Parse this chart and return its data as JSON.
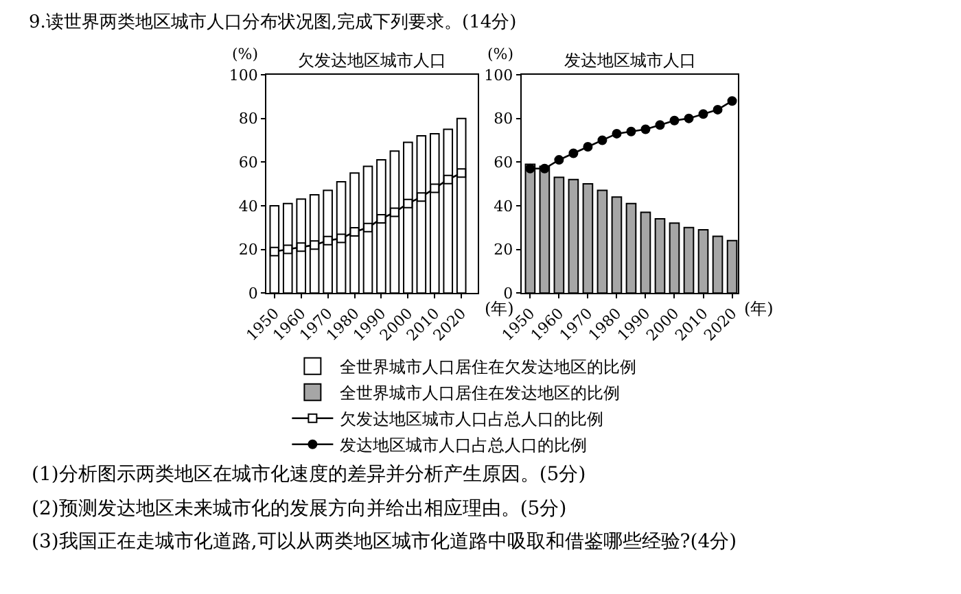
{
  "chart_data": [
    {
      "type": "bar",
      "title": "欠发达地区城市人口",
      "ylabel": "(%)",
      "xlabel": "(年)",
      "annotations": [
        "9.读世界两类地区城市人口分布状况图,完成下列要求。(14分)"
      ],
      "x": [
        1950,
        1955,
        1960,
        1965,
        1970,
        1975,
        1980,
        1985,
        1990,
        1995,
        2000,
        2005,
        2010,
        2015,
        2020
      ],
      "xlim": [
        1947,
        2026
      ],
      "xticks": [
        1950,
        1960,
        1970,
        1980,
        1990,
        2000,
        2010,
        2020
      ],
      "ylim": [
        0,
        100
      ],
      "yticks": [
        0,
        20,
        40,
        60,
        80,
        100
      ],
      "grid": false,
      "legend": "bottom",
      "series": [
        {
          "name": "全世界城市人口居住在欠发达地区的比例",
          "color": "#ffffff",
          "values": [
            40,
            41,
            43,
            45,
            47,
            51,
            55,
            58,
            61,
            65,
            69,
            72,
            73,
            75,
            80
          ]
        },
        {
          "name": "欠发达地区城市人口占总人口的比例",
          "type": "line",
          "color": "#000000",
          "marker": "square",
          "line_style": "solid",
          "values": [
            19,
            20,
            21,
            22,
            24,
            25,
            28,
            30,
            34,
            37,
            41,
            44,
            48,
            52,
            55
          ]
        }
      ]
    },
    {
      "type": "bar",
      "title": "发达地区城市人口",
      "ylabel": "(%)",
      "xlabel": "(年)",
      "annotations": [
        "(1)分析图示两类地区在城市化速度的差异并分析产生原因。(5分)",
        "(2)预测发达地区未来城市化的发展方向并给出相应理由。(5分)",
        "(3)我国正在走城市化道路,可以从两类地区城市化道路中吸取和借鉴哪些经验?(4分)"
      ],
      "x": [
        1950,
        1955,
        1960,
        1965,
        1970,
        1975,
        1980,
        1985,
        1990,
        1995,
        2000,
        2005,
        2010,
        2015,
        2020
      ],
      "xlim": [
        1947,
        2022
      ],
      "xticks": [
        1950,
        1960,
        1970,
        1980,
        1990,
        2000,
        2010,
        2020
      ],
      "ylim": [
        0,
        100
      ],
      "yticks": [
        0,
        20,
        40,
        60,
        80,
        100
      ],
      "grid": false,
      "legend": "bottom",
      "series": [
        {
          "name": "全世界城市人口居住在发达地区的比例",
          "color": "#a6a6a6",
          "values": [
            59,
            58,
            53,
            52,
            50,
            47,
            44,
            41,
            37,
            34,
            32,
            30,
            29,
            26,
            24
          ]
        },
        {
          "name": "发达地区城市人口占总人口的比例",
          "type": "line",
          "color": "#000000",
          "marker": "circle",
          "line_style": "solid",
          "values": [
            57,
            57,
            61,
            64,
            67,
            70,
            73,
            74,
            75,
            77,
            79,
            80,
            82,
            84,
            88
          ]
        }
      ]
    }
  ]
}
